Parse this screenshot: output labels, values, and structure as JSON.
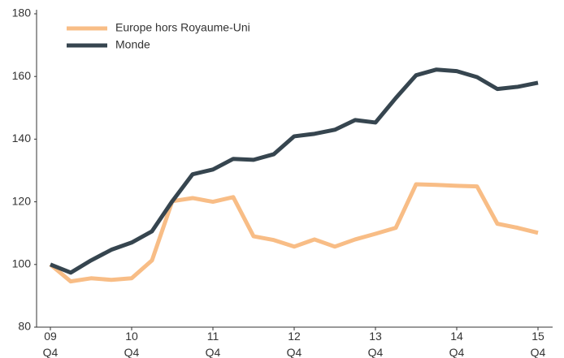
{
  "chart_data": {
    "type": "line",
    "categories": [
      "09\nQ4",
      null,
      null,
      null,
      "10\nQ4",
      null,
      null,
      null,
      "11\nQ4",
      null,
      null,
      null,
      "12\nQ4",
      null,
      null,
      null,
      "13\nQ4",
      null,
      null,
      null,
      "14\nQ4",
      null,
      null,
      null,
      "15\nQ4"
    ],
    "series": [
      {
        "name": "Europe hors Royaume-Uni",
        "color": "#f8bd86",
        "values": [
          100,
          94.6,
          95.6,
          95.1,
          95.6,
          101.3,
          120.2,
          121.2,
          120,
          121.5,
          109,
          107.8,
          105.7,
          108,
          105.7,
          108,
          109.8,
          111.7,
          125.6,
          125.4,
          125.1,
          124.9,
          113,
          111.7,
          110.1
        ]
      },
      {
        "name": "Monde",
        "color": "#36454f",
        "values": [
          100,
          97.4,
          101.3,
          104.7,
          107,
          110.6,
          120.2,
          128.8,
          130.3,
          133.7,
          133.4,
          135.2,
          140.9,
          141.7,
          143,
          146.1,
          145.3,
          153.1,
          160.4,
          162.2,
          161.7,
          159.8,
          156,
          156.7,
          158
        ]
      }
    ],
    "ylim": [
      80,
      180
    ],
    "yticks": [
      80,
      100,
      120,
      140,
      160,
      180
    ],
    "legend": "upper-left",
    "grid": false
  }
}
